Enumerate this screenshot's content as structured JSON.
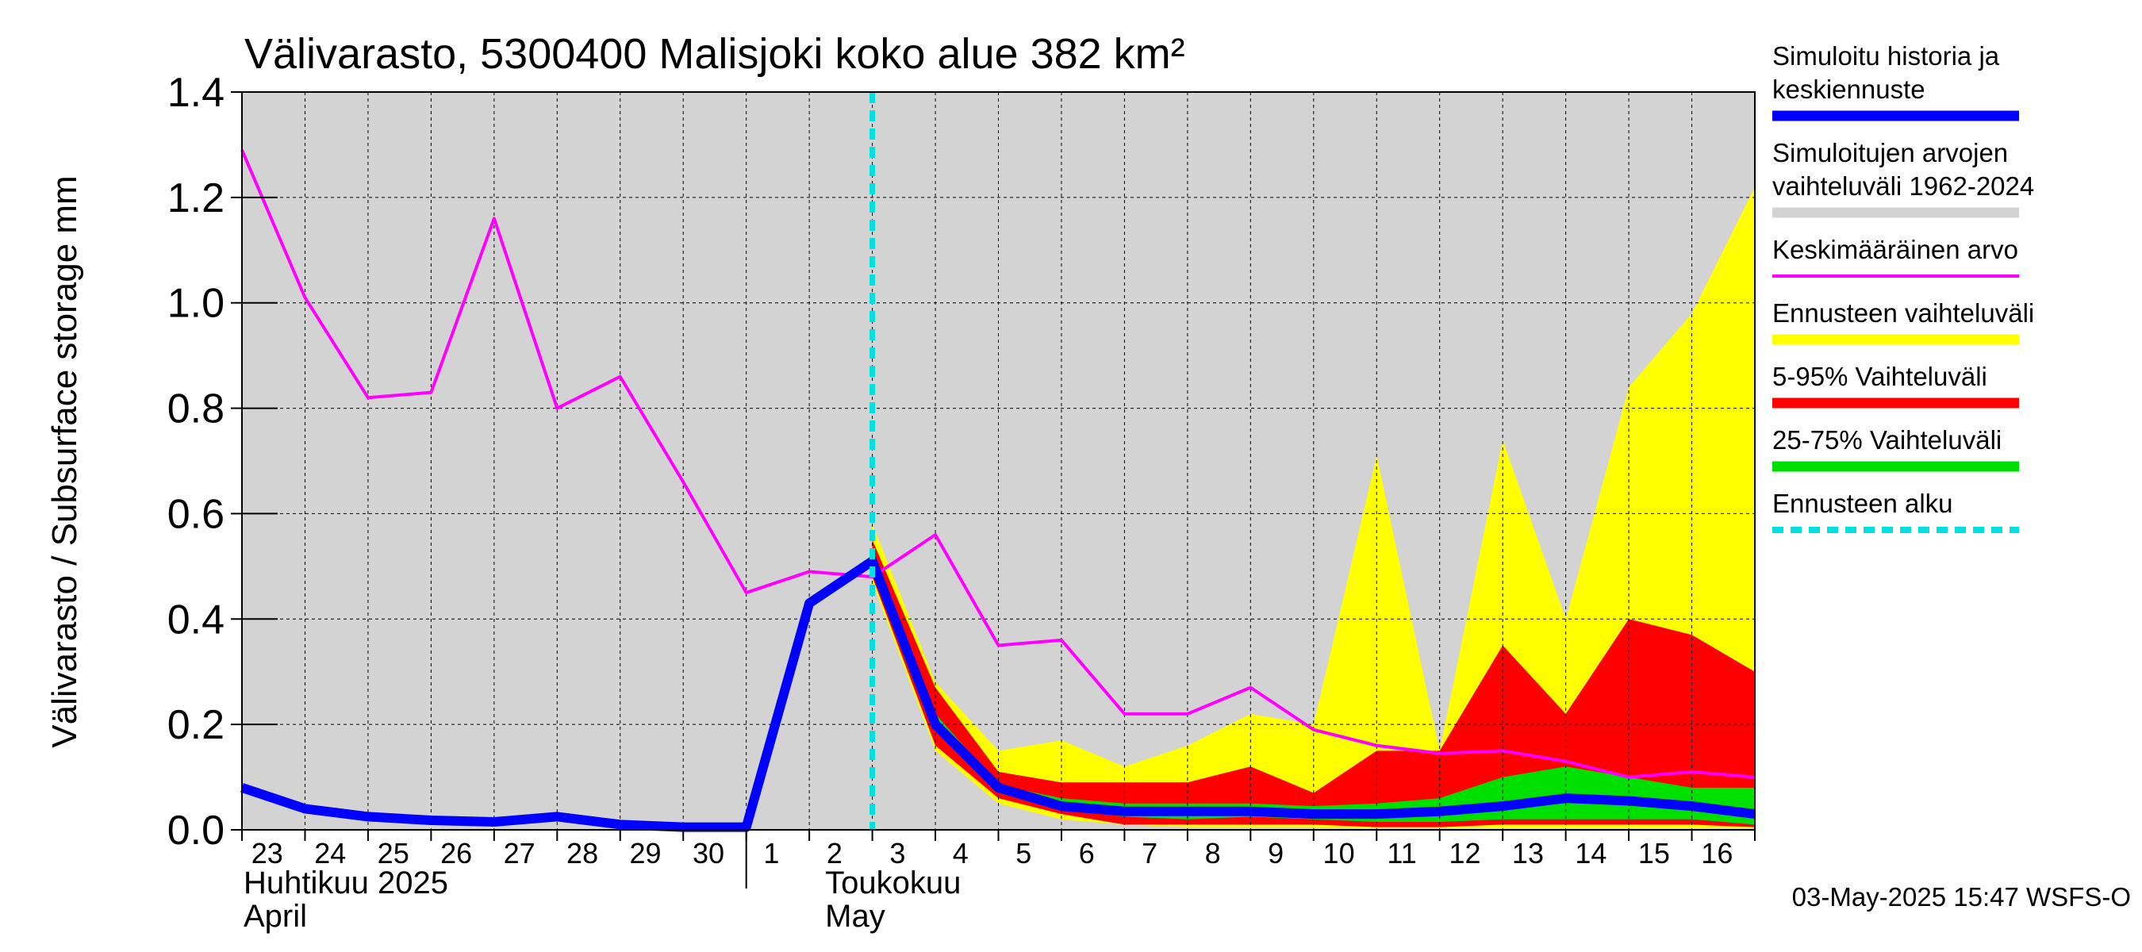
{
  "chart_data": {
    "type": "area",
    "title": "Välivarasto, 5300400 Malisjoki koko alue 382 km²",
    "ylabel": "Välivarasto / Subsurface storage  mm",
    "ylim": [
      0,
      1.4
    ],
    "yticks": [
      "0.0",
      "0.2",
      "0.4",
      "0.6",
      "0.8",
      "1.0",
      "1.2",
      "1.4"
    ],
    "ytick_values": [
      0,
      0.2,
      0.4,
      0.6,
      0.8,
      1.0,
      1.2,
      1.4
    ],
    "x_start": "2025-04-23",
    "x_end": "2025-05-17",
    "xtick_labels": [
      "23",
      "24",
      "25",
      "26",
      "27",
      "28",
      "29",
      "30",
      "1",
      "2",
      "3",
      "4",
      "5",
      "6",
      "7",
      "8",
      "9",
      "10",
      "11",
      "12",
      "13",
      "14",
      "15",
      "16"
    ],
    "month_labels": [
      {
        "line1": "Huhtikuu  2025",
        "line2": "April"
      },
      {
        "line1": "Toukokuu",
        "line2": "May"
      }
    ],
    "forecast_start": 10.0,
    "grid": true,
    "legend_position": "right",
    "series": [
      {
        "name": "Simuloitujen arvojen vaihteluväli 1962-2024",
        "kind": "band",
        "color": "#d3d3d3",
        "x": [
          0,
          24
        ],
        "lower": [
          0,
          0
        ],
        "upper": [
          1.4,
          1.4
        ]
      },
      {
        "name": "Ennusteen vaihteluväli",
        "kind": "band",
        "color": "#ffff00",
        "x": [
          10,
          11,
          12,
          13,
          14,
          15,
          16,
          17,
          18,
          19,
          20,
          21,
          22,
          23,
          24
        ],
        "upper": [
          0.58,
          0.28,
          0.15,
          0.17,
          0.12,
          0.16,
          0.22,
          0.2,
          0.71,
          0.15,
          0.74,
          0.4,
          0.84,
          0.98,
          1.22
        ],
        "lower": [
          0.47,
          0.15,
          0.05,
          0.02,
          0.01,
          0.005,
          0.005,
          0.005,
          0.003,
          0.003,
          0.003,
          0.003,
          0.003,
          0.003,
          0.003
        ]
      },
      {
        "name": "5-95% Vaihteluväli",
        "kind": "band",
        "color": "#ff0000",
        "x": [
          10,
          11,
          12,
          13,
          14,
          15,
          16,
          17,
          18,
          19,
          20,
          21,
          22,
          23,
          24
        ],
        "upper": [
          0.55,
          0.27,
          0.11,
          0.09,
          0.09,
          0.09,
          0.12,
          0.07,
          0.15,
          0.15,
          0.35,
          0.22,
          0.4,
          0.37,
          0.3
        ],
        "lower": [
          0.48,
          0.16,
          0.06,
          0.03,
          0.01,
          0.01,
          0.01,
          0.01,
          0.005,
          0.005,
          0.01,
          0.01,
          0.01,
          0.01,
          0.005
        ]
      },
      {
        "name": "25-75% Vaihteluväli",
        "kind": "band",
        "color": "#00e000",
        "x": [
          10,
          11,
          12,
          13,
          14,
          15,
          16,
          17,
          18,
          19,
          20,
          21,
          22,
          23,
          24
        ],
        "upper": [
          0.52,
          0.22,
          0.085,
          0.06,
          0.05,
          0.05,
          0.05,
          0.045,
          0.05,
          0.06,
          0.1,
          0.12,
          0.1,
          0.08,
          0.08
        ],
        "lower": [
          0.5,
          0.19,
          0.07,
          0.04,
          0.025,
          0.02,
          0.025,
          0.02,
          0.015,
          0.015,
          0.02,
          0.02,
          0.02,
          0.02,
          0.01
        ]
      },
      {
        "name": "Keskimääräinen arvo",
        "kind": "line",
        "color": "#ff00ff",
        "x": [
          0,
          1,
          2,
          3,
          4,
          5,
          6,
          7,
          8,
          9,
          10,
          11,
          12,
          13,
          14,
          15,
          16,
          17,
          18,
          19,
          20,
          21,
          22,
          23,
          24
        ],
        "values": [
          1.29,
          1.01,
          0.82,
          0.83,
          1.16,
          0.8,
          0.86,
          0.66,
          0.45,
          0.49,
          0.48,
          0.56,
          0.35,
          0.36,
          0.22,
          0.22,
          0.27,
          0.19,
          0.16,
          0.145,
          0.15,
          0.13,
          0.1,
          0.11,
          0.1
        ]
      },
      {
        "name": "Simuloitu historia ja keskiennuste",
        "kind": "line",
        "color": "#0000ff",
        "x": [
          0,
          1,
          2,
          3,
          4,
          5,
          6,
          7,
          8,
          9,
          10,
          11,
          12,
          13,
          14,
          15,
          16,
          17,
          18,
          19,
          20,
          21,
          22,
          23,
          24
        ],
        "values": [
          0.08,
          0.04,
          0.025,
          0.018,
          0.015,
          0.025,
          0.01,
          0.005,
          0.005,
          0.43,
          0.51,
          0.2,
          0.08,
          0.045,
          0.035,
          0.035,
          0.035,
          0.03,
          0.03,
          0.035,
          0.045,
          0.06,
          0.055,
          0.045,
          0.03
        ]
      },
      {
        "name": "Ennusteen alku",
        "kind": "vline",
        "color": "#00e0e0",
        "x": [
          10
        ]
      }
    ]
  },
  "legend": [
    {
      "lines": [
        "Simuloitu historia ja",
        "keskiennuste"
      ],
      "color": "#0000ff",
      "style": "thick"
    },
    {
      "lines": [
        "Simuloitujen arvojen",
        "vaihteluväli 1962-2024"
      ],
      "color": "#d3d3d3",
      "style": "thick"
    },
    {
      "lines": [
        "Keskimääräinen arvo"
      ],
      "color": "#ff00ff",
      "style": "thin"
    },
    {
      "lines": [
        "Ennusteen vaihteluväli"
      ],
      "color": "#ffff00",
      "style": "thick"
    },
    {
      "lines": [
        "5-95% Vaihteluväli"
      ],
      "color": "#ff0000",
      "style": "thick"
    },
    {
      "lines": [
        "25-75% Vaihteluväli"
      ],
      "color": "#00e000",
      "style": "thick"
    },
    {
      "lines": [
        "Ennusteen alku"
      ],
      "color": "#00e0e0",
      "style": "dashed"
    }
  ],
  "timestamp": "03-May-2025 15:47 WSFS-O"
}
